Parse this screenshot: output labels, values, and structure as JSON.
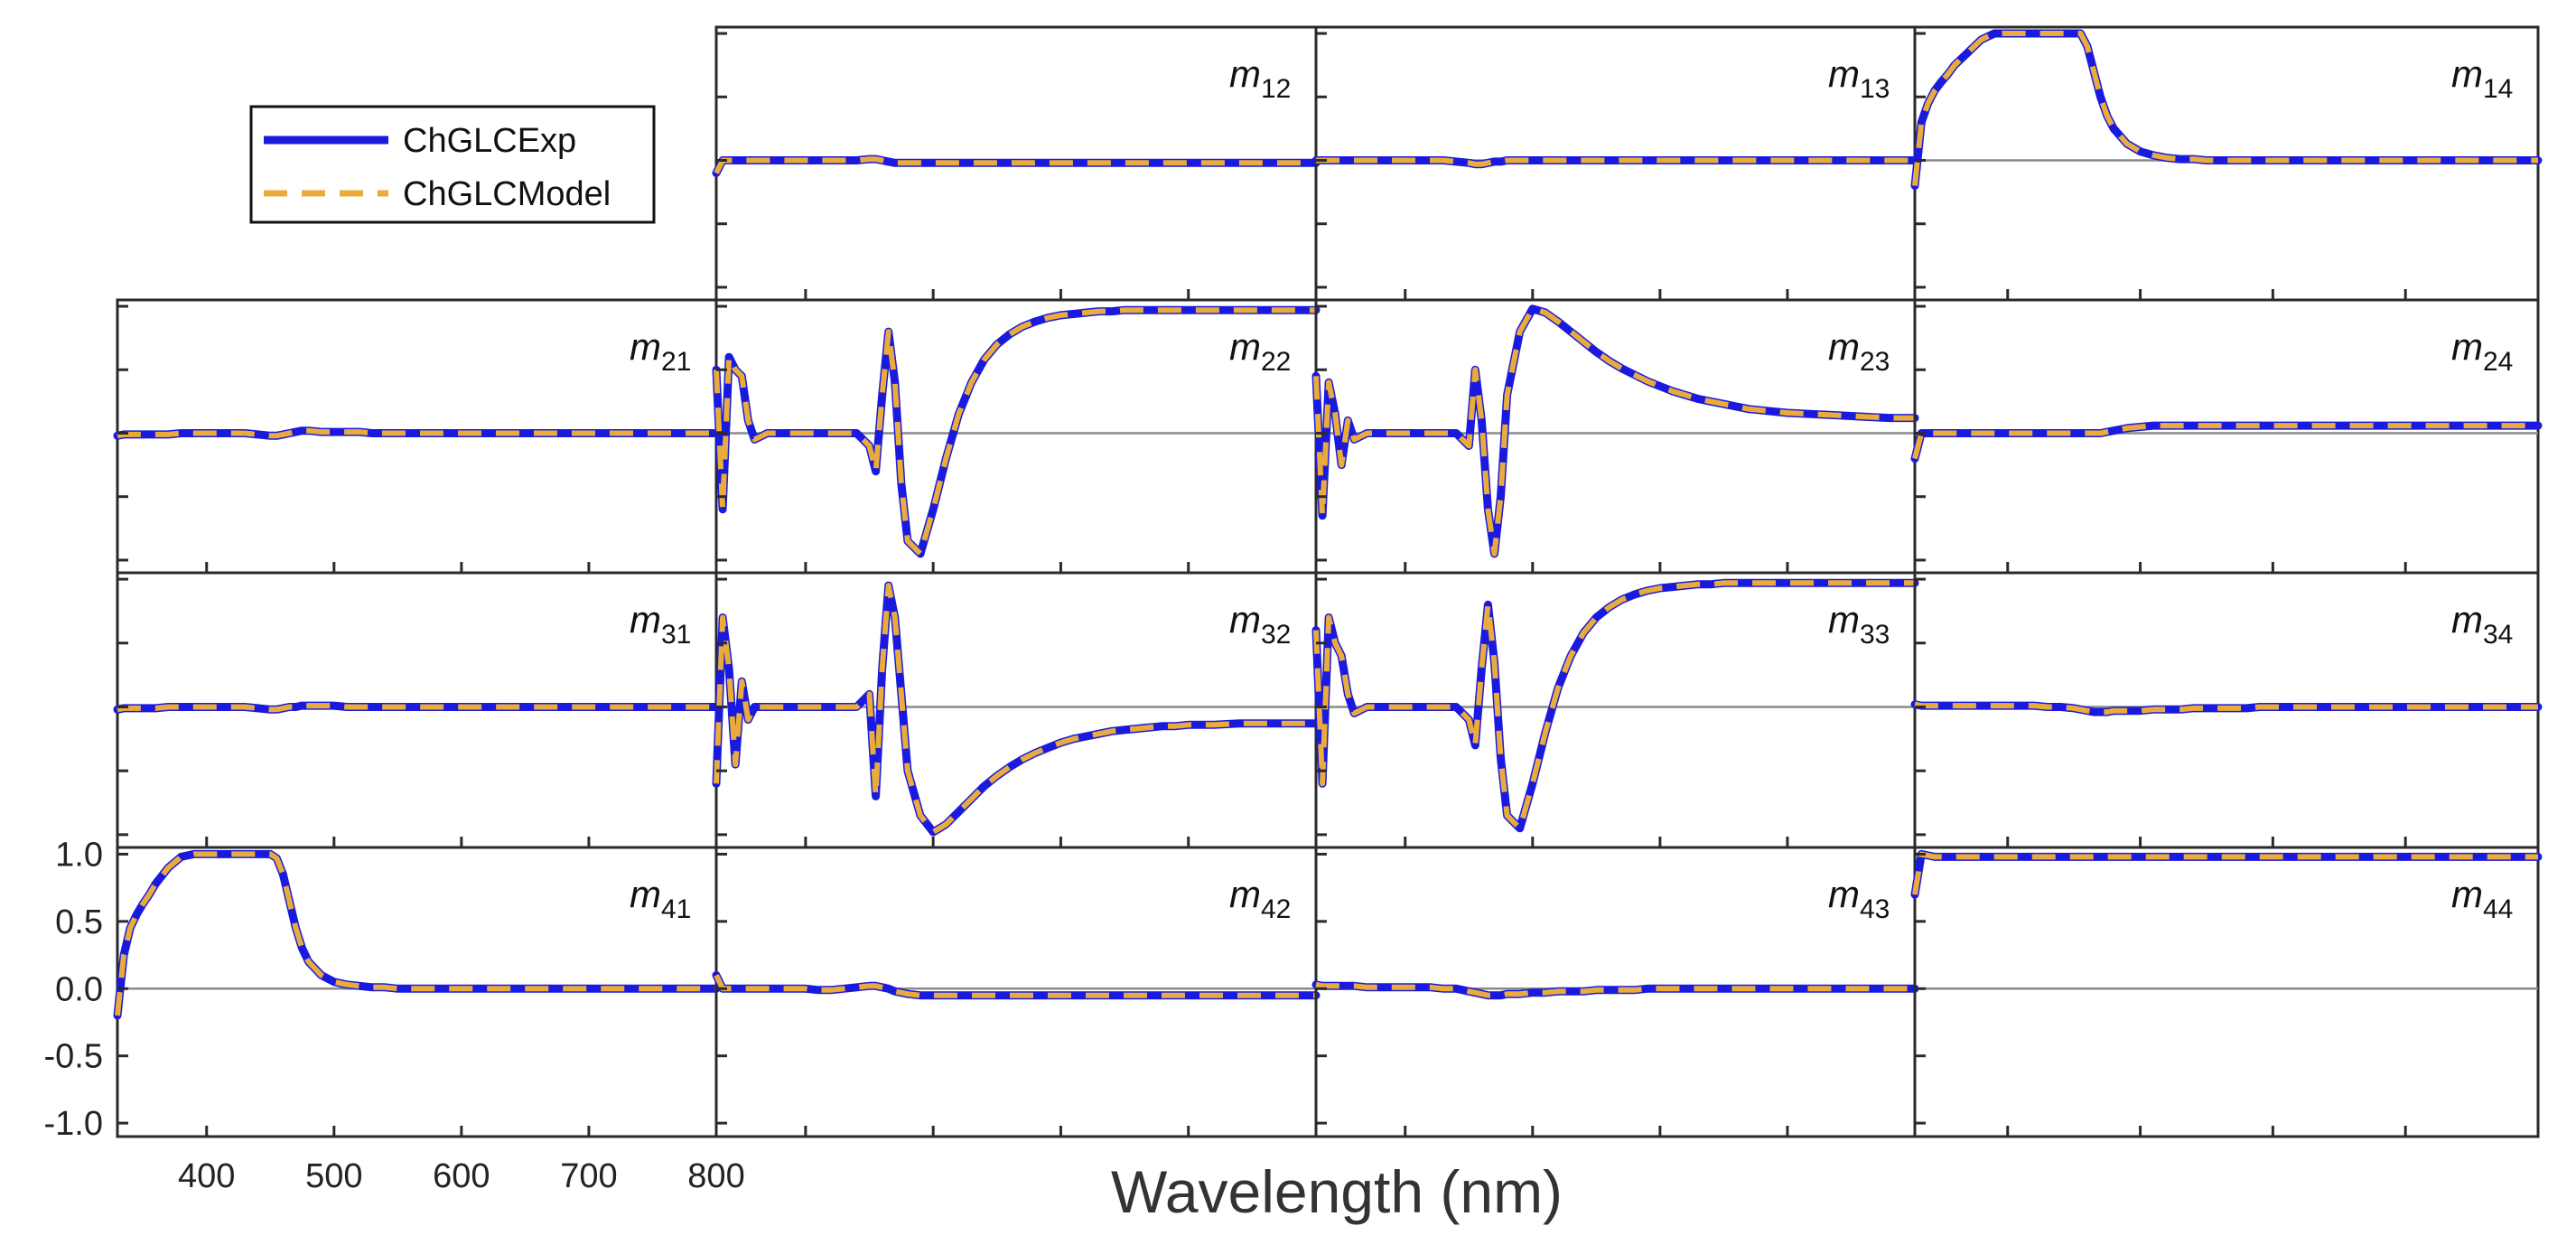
{
  "chart_data": {
    "type": "line",
    "title": "",
    "xlabel": "Wavelength (nm)",
    "ylabel": "",
    "xlim": [
      330,
      800
    ],
    "ylim": [
      -1.1,
      1.05
    ],
    "x_ticks": [
      400,
      500,
      600,
      700,
      800
    ],
    "x_tick_labels": [
      "400",
      "500",
      "600",
      "700",
      "800"
    ],
    "y_ticks": [
      1.0,
      0.5,
      0.0,
      -0.5,
      -1.0
    ],
    "y_tick_labels": [
      "1.0",
      "0.5",
      "0.0",
      "-0.5",
      "-1.0"
    ],
    "legend": {
      "placement": "top-left",
      "entries": [
        {
          "name": "ChGLCExp",
          "style": "solid",
          "color": "#1a1adf"
        },
        {
          "name": "ChGLCModel",
          "style": "dashed",
          "color": "#e9ac3c"
        }
      ]
    },
    "grid": false,
    "x": [
      330,
      335,
      340,
      345,
      350,
      355,
      360,
      370,
      380,
      390,
      400,
      410,
      420,
      430,
      440,
      450,
      455,
      460,
      465,
      470,
      475,
      480,
      490,
      500,
      510,
      520,
      530,
      540,
      550,
      560,
      570,
      580,
      590,
      600,
      610,
      620,
      630,
      640,
      650,
      660,
      670,
      680,
      690,
      700,
      720,
      740,
      760,
      780,
      800
    ],
    "panels": [
      {
        "id": "m12",
        "main": "m",
        "sub": "12",
        "row": 0,
        "col": 1,
        "y": [
          -0.1,
          0.0,
          0.0,
          0.0,
          0.0,
          0.0,
          0.0,
          0.0,
          0.0,
          0.0,
          0.0,
          0.0,
          0.0,
          0.0,
          0.0,
          0.01,
          0.01,
          0.0,
          -0.01,
          -0.02,
          -0.02,
          -0.02,
          -0.02,
          -0.02,
          -0.02,
          -0.02,
          -0.02,
          -0.02,
          -0.02,
          -0.02,
          -0.02,
          -0.02,
          -0.02,
          -0.02,
          -0.02,
          -0.02,
          -0.02,
          -0.02,
          -0.02,
          -0.02,
          -0.02,
          -0.02,
          -0.02,
          -0.02,
          -0.02,
          -0.02,
          -0.02,
          -0.02,
          -0.02
        ]
      },
      {
        "id": "m13",
        "main": "m",
        "sub": "13",
        "row": 0,
        "col": 2,
        "y": [
          0.0,
          0.0,
          0.0,
          0.0,
          0.0,
          0.0,
          0.0,
          0.0,
          0.0,
          0.0,
          0.0,
          0.0,
          0.0,
          0.0,
          -0.01,
          -0.02,
          -0.03,
          -0.03,
          -0.02,
          -0.01,
          -0.01,
          0.0,
          0.0,
          0.0,
          0.0,
          0.0,
          0.0,
          0.0,
          0.0,
          0.0,
          0.0,
          0.0,
          0.0,
          0.0,
          0.0,
          0.0,
          0.0,
          0.0,
          0.0,
          0.0,
          0.0,
          0.0,
          0.0,
          0.0,
          0.0,
          0.0,
          0.0,
          0.0,
          0.0
        ]
      },
      {
        "id": "m14",
        "main": "m",
        "sub": "14",
        "row": 0,
        "col": 3,
        "y": [
          -0.2,
          0.3,
          0.45,
          0.55,
          0.62,
          0.68,
          0.75,
          0.85,
          0.95,
          1.0,
          1.0,
          1.0,
          1.0,
          1.0,
          1.0,
          1.0,
          1.0,
          0.9,
          0.7,
          0.5,
          0.35,
          0.25,
          0.13,
          0.07,
          0.04,
          0.02,
          0.01,
          0.01,
          0.0,
          0.0,
          0.0,
          0.0,
          0.0,
          0.0,
          0.0,
          0.0,
          0.0,
          0.0,
          0.0,
          0.0,
          0.0,
          0.0,
          0.0,
          0.0,
          0.0,
          0.0,
          0.0,
          0.0,
          0.0
        ]
      },
      {
        "id": "m21",
        "main": "m",
        "sub": "21",
        "row": 1,
        "col": 0,
        "y": [
          -0.02,
          -0.01,
          -0.01,
          -0.01,
          -0.01,
          -0.01,
          -0.01,
          -0.01,
          0.0,
          0.0,
          0.0,
          0.0,
          0.0,
          0.0,
          -0.01,
          -0.02,
          -0.02,
          -0.01,
          0.0,
          0.01,
          0.02,
          0.02,
          0.01,
          0.01,
          0.01,
          0.01,
          0.0,
          0.0,
          0.0,
          0.0,
          0.0,
          0.0,
          0.0,
          0.0,
          0.0,
          0.0,
          0.0,
          0.0,
          0.0,
          0.0,
          0.0,
          0.0,
          0.0,
          0.0,
          0.0,
          0.0,
          0.0,
          0.0,
          0.0
        ]
      },
      {
        "id": "m22",
        "main": "m",
        "sub": "22",
        "row": 1,
        "col": 1,
        "y": [
          0.5,
          -0.6,
          0.6,
          0.5,
          0.45,
          0.1,
          -0.05,
          0.0,
          0.0,
          0.0,
          0.0,
          0.0,
          0.0,
          0.0,
          0.0,
          -0.1,
          -0.3,
          0.3,
          0.8,
          0.4,
          -0.4,
          -0.85,
          -0.95,
          -0.6,
          -0.2,
          0.15,
          0.4,
          0.58,
          0.7,
          0.78,
          0.84,
          0.88,
          0.91,
          0.93,
          0.94,
          0.95,
          0.96,
          0.96,
          0.97,
          0.97,
          0.97,
          0.97,
          0.97,
          0.97,
          0.97,
          0.97,
          0.97,
          0.97,
          0.97
        ]
      },
      {
        "id": "m23",
        "main": "m",
        "sub": "23",
        "row": 1,
        "col": 2,
        "y": [
          0.45,
          -0.65,
          0.4,
          0.15,
          -0.25,
          0.1,
          -0.05,
          0.0,
          0.0,
          0.0,
          0.0,
          0.0,
          0.0,
          0.0,
          0.0,
          -0.1,
          0.5,
          0.1,
          -0.6,
          -0.95,
          -0.5,
          0.3,
          0.8,
          0.98,
          0.95,
          0.88,
          0.8,
          0.72,
          0.64,
          0.57,
          0.51,
          0.46,
          0.41,
          0.37,
          0.33,
          0.3,
          0.27,
          0.25,
          0.23,
          0.21,
          0.19,
          0.18,
          0.17,
          0.16,
          0.15,
          0.14,
          0.13,
          0.12,
          0.12
        ]
      },
      {
        "id": "m24",
        "main": "m",
        "sub": "24",
        "row": 1,
        "col": 3,
        "y": [
          -0.2,
          0.0,
          0.0,
          0.0,
          0.0,
          0.0,
          0.0,
          0.0,
          0.0,
          0.0,
          0.0,
          0.0,
          0.0,
          0.0,
          0.0,
          0.0,
          0.0,
          0.0,
          0.0,
          0.0,
          0.01,
          0.02,
          0.04,
          0.05,
          0.06,
          0.06,
          0.06,
          0.06,
          0.06,
          0.06,
          0.06,
          0.06,
          0.06,
          0.06,
          0.06,
          0.06,
          0.06,
          0.06,
          0.06,
          0.06,
          0.06,
          0.06,
          0.06,
          0.06,
          0.06,
          0.06,
          0.06,
          0.06,
          0.06
        ]
      },
      {
        "id": "m31",
        "main": "m",
        "sub": "31",
        "row": 2,
        "col": 0,
        "y": [
          -0.02,
          -0.01,
          -0.01,
          -0.01,
          -0.01,
          -0.01,
          -0.01,
          0.0,
          0.0,
          0.0,
          0.0,
          0.0,
          0.0,
          0.0,
          -0.01,
          -0.02,
          -0.02,
          -0.01,
          0.0,
          0.0,
          0.01,
          0.01,
          0.01,
          0.01,
          0.0,
          0.0,
          0.0,
          0.0,
          0.0,
          0.0,
          0.0,
          0.0,
          0.0,
          0.0,
          0.0,
          0.0,
          0.0,
          0.0,
          0.0,
          0.0,
          0.0,
          0.0,
          0.0,
          0.0,
          0.0,
          0.0,
          0.0,
          0.0,
          0.0
        ]
      },
      {
        "id": "m32",
        "main": "m",
        "sub": "32",
        "row": 2,
        "col": 1,
        "y": [
          -0.6,
          0.7,
          0.3,
          -0.45,
          0.2,
          -0.1,
          0.0,
          0.0,
          0.0,
          0.0,
          0.0,
          0.0,
          0.0,
          0.0,
          0.0,
          0.1,
          -0.7,
          0.3,
          0.95,
          0.7,
          0.1,
          -0.5,
          -0.85,
          -0.98,
          -0.92,
          -0.82,
          -0.72,
          -0.62,
          -0.54,
          -0.47,
          -0.41,
          -0.36,
          -0.32,
          -0.28,
          -0.25,
          -0.23,
          -0.21,
          -0.19,
          -0.18,
          -0.17,
          -0.16,
          -0.15,
          -0.15,
          -0.14,
          -0.14,
          -0.13,
          -0.13,
          -0.13,
          -0.13
        ]
      },
      {
        "id": "m33",
        "main": "m",
        "sub": "33",
        "row": 2,
        "col": 2,
        "y": [
          0.6,
          -0.6,
          0.7,
          0.5,
          0.4,
          0.1,
          -0.05,
          0.0,
          0.0,
          0.0,
          0.0,
          0.0,
          0.0,
          0.0,
          0.0,
          -0.1,
          -0.3,
          0.3,
          0.8,
          0.35,
          -0.4,
          -0.85,
          -0.95,
          -0.6,
          -0.2,
          0.15,
          0.4,
          0.58,
          0.7,
          0.78,
          0.84,
          0.88,
          0.91,
          0.93,
          0.94,
          0.95,
          0.96,
          0.96,
          0.97,
          0.97,
          0.97,
          0.97,
          0.97,
          0.97,
          0.97,
          0.97,
          0.97,
          0.97,
          0.97
        ]
      },
      {
        "id": "m34",
        "main": "m",
        "sub": "34",
        "row": 2,
        "col": 3,
        "y": [
          0.02,
          0.01,
          0.01,
          0.01,
          0.01,
          0.01,
          0.01,
          0.01,
          0.01,
          0.01,
          0.01,
          0.01,
          0.01,
          0.0,
          0.0,
          -0.01,
          -0.02,
          -0.03,
          -0.04,
          -0.04,
          -0.04,
          -0.03,
          -0.03,
          -0.03,
          -0.02,
          -0.02,
          -0.02,
          -0.01,
          -0.01,
          -0.01,
          -0.01,
          -0.01,
          0.0,
          0.0,
          0.0,
          0.0,
          0.0,
          0.0,
          0.0,
          0.0,
          0.0,
          0.0,
          0.0,
          0.0,
          0.0,
          0.0,
          0.0,
          0.0,
          0.0
        ]
      },
      {
        "id": "m41",
        "main": "m",
        "sub": "41",
        "row": 3,
        "col": 0,
        "y": [
          -0.2,
          0.25,
          0.45,
          0.55,
          0.63,
          0.7,
          0.78,
          0.9,
          0.98,
          1.0,
          1.0,
          1.0,
          1.0,
          1.0,
          1.0,
          1.0,
          0.97,
          0.85,
          0.65,
          0.45,
          0.3,
          0.2,
          0.1,
          0.05,
          0.03,
          0.02,
          0.01,
          0.01,
          0.0,
          0.0,
          0.0,
          0.0,
          0.0,
          0.0,
          0.0,
          0.0,
          0.0,
          0.0,
          0.0,
          0.0,
          0.0,
          0.0,
          0.0,
          0.0,
          0.0,
          0.0,
          0.0,
          0.0,
          0.0
        ]
      },
      {
        "id": "m42",
        "main": "m",
        "sub": "42",
        "row": 3,
        "col": 1,
        "y": [
          0.1,
          0.0,
          0.0,
          0.0,
          0.0,
          0.0,
          0.0,
          0.0,
          0.0,
          0.0,
          0.0,
          -0.01,
          -0.01,
          0.0,
          0.01,
          0.02,
          0.02,
          0.01,
          0.0,
          -0.02,
          -0.03,
          -0.04,
          -0.05,
          -0.05,
          -0.05,
          -0.05,
          -0.05,
          -0.05,
          -0.05,
          -0.05,
          -0.05,
          -0.05,
          -0.05,
          -0.05,
          -0.05,
          -0.05,
          -0.05,
          -0.05,
          -0.05,
          -0.05,
          -0.05,
          -0.05,
          -0.05,
          -0.05,
          -0.05,
          -0.05,
          -0.05,
          -0.05,
          -0.05
        ]
      },
      {
        "id": "m43",
        "main": "m",
        "sub": "43",
        "row": 3,
        "col": 2,
        "y": [
          0.03,
          0.02,
          0.02,
          0.02,
          0.02,
          0.02,
          0.02,
          0.01,
          0.01,
          0.01,
          0.01,
          0.01,
          0.01,
          0.0,
          0.0,
          -0.02,
          -0.03,
          -0.04,
          -0.05,
          -0.05,
          -0.05,
          -0.04,
          -0.04,
          -0.03,
          -0.03,
          -0.02,
          -0.02,
          -0.02,
          -0.01,
          -0.01,
          -0.01,
          -0.01,
          0.0,
          0.0,
          0.0,
          0.0,
          0.0,
          0.0,
          0.0,
          0.0,
          0.0,
          0.0,
          0.0,
          0.0,
          0.0,
          0.0,
          0.0,
          0.0,
          0.0
        ]
      },
      {
        "id": "m44",
        "main": "m",
        "sub": "44",
        "row": 3,
        "col": 3,
        "y": [
          0.7,
          1.0,
          0.99,
          0.98,
          0.98,
          0.98,
          0.98,
          0.98,
          0.98,
          0.98,
          0.98,
          0.98,
          0.98,
          0.98,
          0.98,
          0.98,
          0.98,
          0.98,
          0.98,
          0.98,
          0.98,
          0.98,
          0.98,
          0.98,
          0.98,
          0.98,
          0.98,
          0.98,
          0.98,
          0.98,
          0.98,
          0.98,
          0.98,
          0.98,
          0.98,
          0.98,
          0.98,
          0.98,
          0.98,
          0.98,
          0.98,
          0.98,
          0.98,
          0.98,
          0.98,
          0.98,
          0.98,
          0.98,
          0.98
        ]
      }
    ]
  }
}
